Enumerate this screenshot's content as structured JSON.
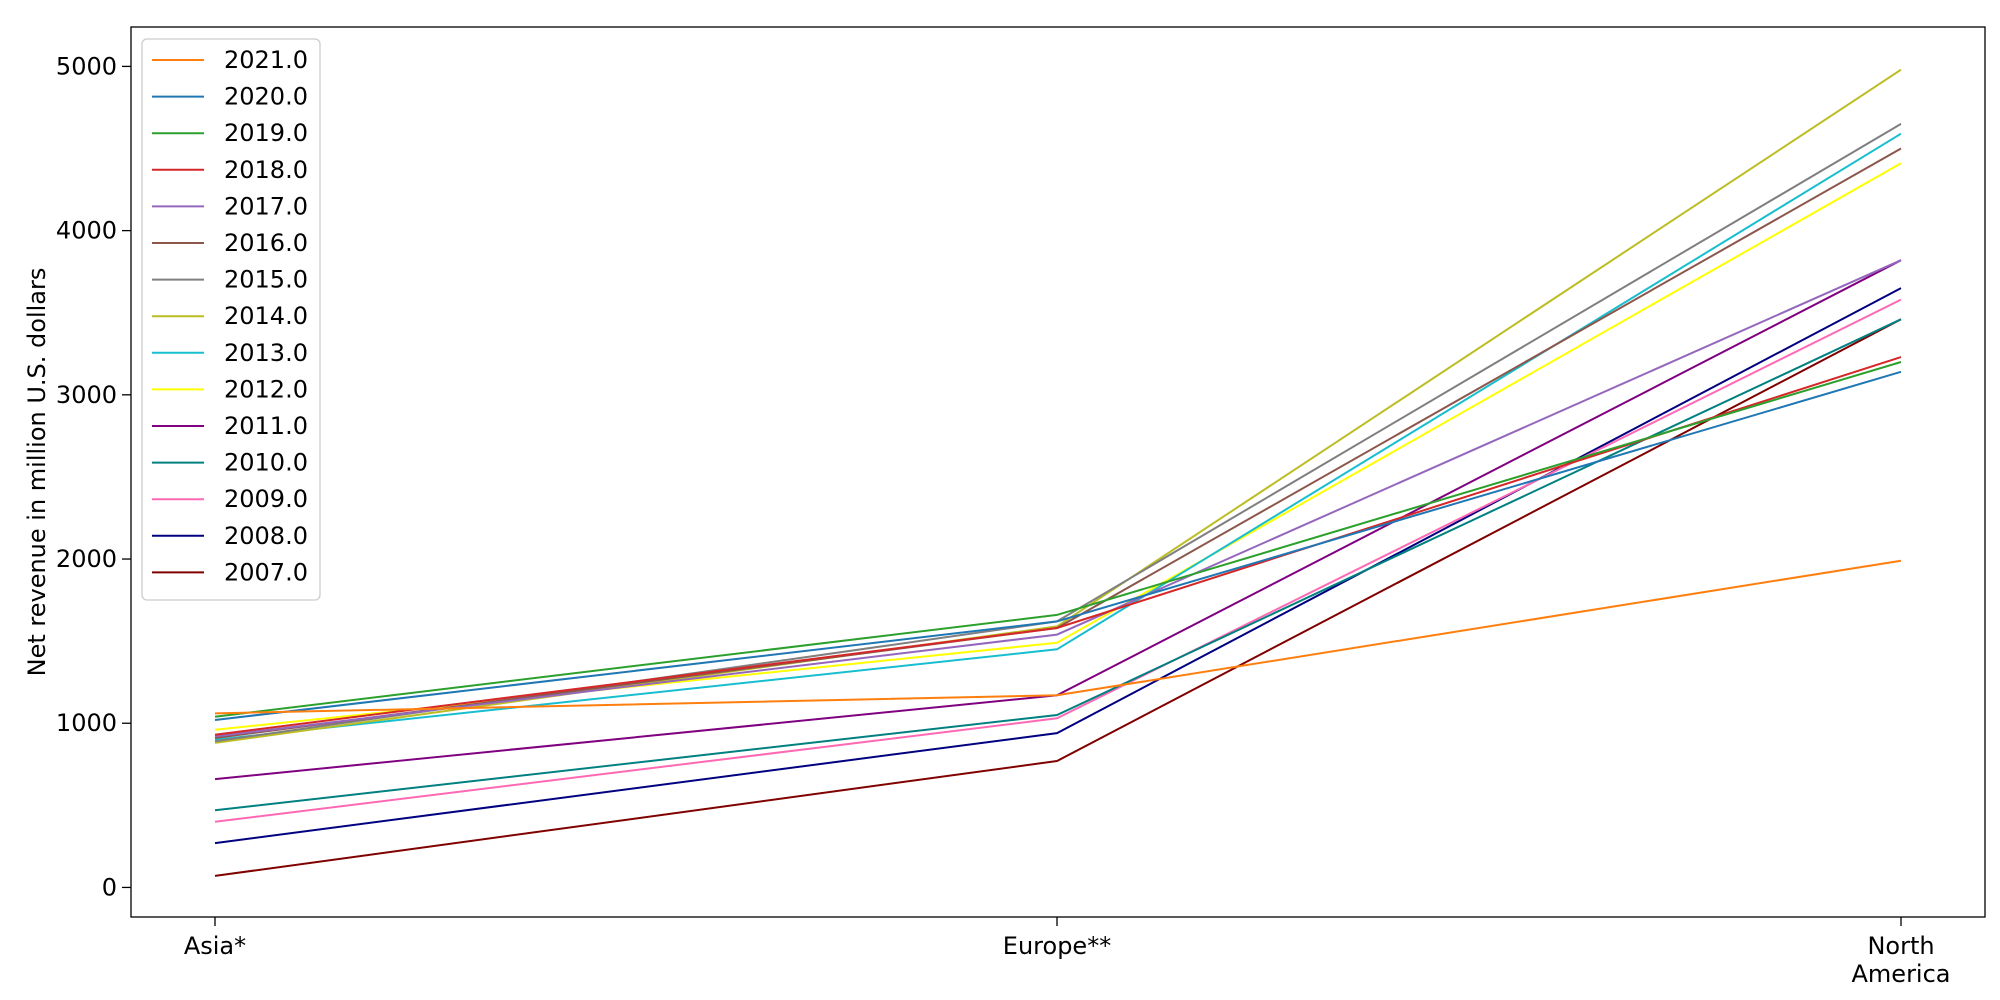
{
  "chart_data": {
    "type": "line",
    "title": "",
    "xlabel": "",
    "ylabel": "Net revenue in million U.S. dollars",
    "categories": [
      "Asia*",
      "Europe**",
      "North America"
    ],
    "category_lines": [
      [
        "Asia*"
      ],
      [
        "Europe**"
      ],
      [
        "North",
        "America"
      ]
    ],
    "yticks": [
      0,
      1000,
      2000,
      3000,
      4000,
      5000
    ],
    "ylim": [
      -180,
      5240
    ],
    "grid": false,
    "legend_position": "top-left",
    "series": [
      {
        "name": "2021.0",
        "color": "#ff7f0e",
        "values": [
          1060,
          1170,
          1990
        ]
      },
      {
        "name": "2020.0",
        "color": "#1f77b4",
        "values": [
          1020,
          1620,
          3140
        ]
      },
      {
        "name": "2019.0",
        "color": "#2ca02c",
        "values": [
          1040,
          1660,
          3200
        ]
      },
      {
        "name": "2018.0",
        "color": "#d62728",
        "values": [
          930,
          1580,
          3230
        ]
      },
      {
        "name": "2017.0",
        "color": "#9467bd",
        "values": [
          920,
          1540,
          3820
        ]
      },
      {
        "name": "2016.0",
        "color": "#8c564b",
        "values": [
          910,
          1580,
          4500
        ]
      },
      {
        "name": "2015.0",
        "color": "#7f7f7f",
        "values": [
          890,
          1620,
          4650
        ]
      },
      {
        "name": "2014.0",
        "color": "#bcbd22",
        "values": [
          880,
          1590,
          4980
        ]
      },
      {
        "name": "2013.0",
        "color": "#17becf",
        "values": [
          900,
          1450,
          4590
        ]
      },
      {
        "name": "2012.0",
        "color": "#ffff00",
        "values": [
          960,
          1490,
          4410
        ]
      },
      {
        "name": "2011.0",
        "color": "#800080",
        "values": [
          660,
          1170,
          3820
        ]
      },
      {
        "name": "2010.0",
        "color": "#008080",
        "values": [
          470,
          1050,
          3460
        ]
      },
      {
        "name": "2009.0",
        "color": "#ff69b4",
        "values": [
          400,
          1030,
          3580
        ]
      },
      {
        "name": "2008.0",
        "color": "#000080",
        "values": [
          270,
          940,
          3650
        ]
      },
      {
        "name": "2007.0",
        "color": "#800000",
        "values": [
          70,
          770,
          3460
        ]
      }
    ]
  }
}
